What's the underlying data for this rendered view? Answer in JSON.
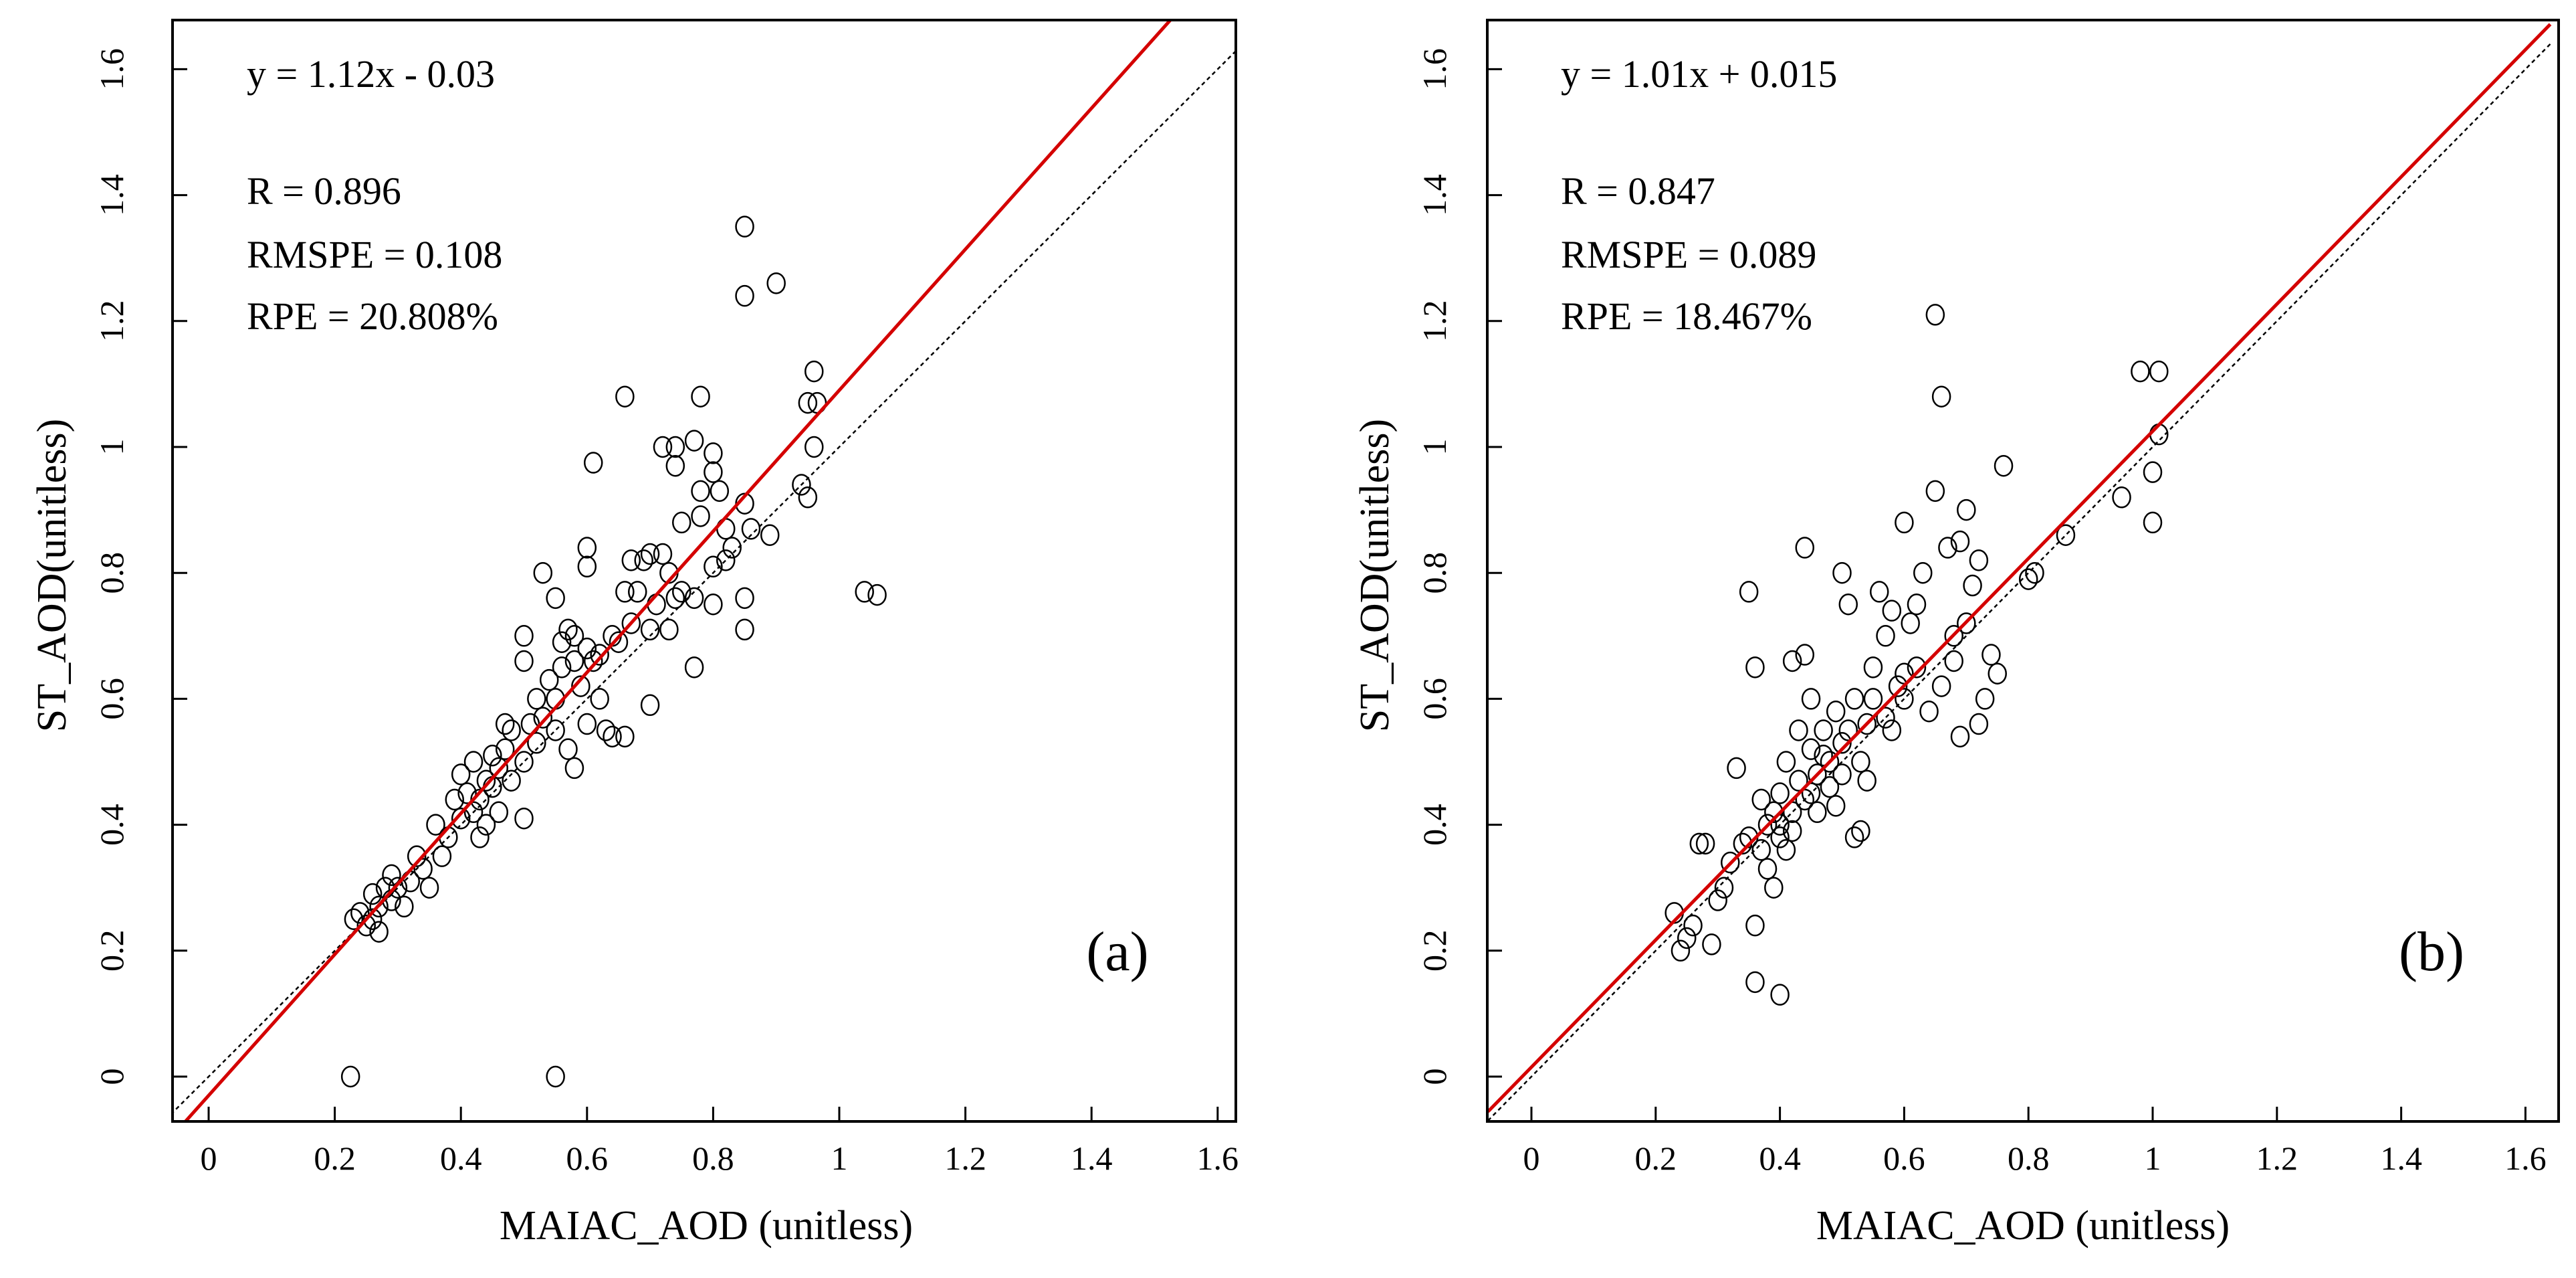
{
  "chart_data": [
    {
      "type": "scatter",
      "panel_label": "(a)",
      "xlabel": "MAIAC_AOD (unitless)",
      "ylabel": "ST_AOD(unitless)",
      "xlim": [
        -0.06,
        1.64
      ],
      "ylim": [
        -0.07,
        1.65
      ],
      "xticks": [
        0,
        0.2,
        0.4,
        0.6,
        0.8,
        1,
        1.2,
        1.4,
        1.6
      ],
      "yticks": [
        0,
        0.2,
        0.4,
        0.6,
        0.8,
        1,
        1.2,
        1.4,
        1.6
      ],
      "annotations": [
        "y = 1.12x - 0.03",
        "R = 0.896",
        "RMSPE = 0.108",
        "RPE = 20.808%"
      ],
      "fit": {
        "slope": 1.12,
        "intercept": -0.03,
        "color": "#d40000"
      },
      "reference_line": {
        "slope": 1,
        "intercept": 0,
        "style": "dotted"
      },
      "points": [
        [
          0.225,
          0.0
        ],
        [
          0.55,
          0.0
        ],
        [
          0.85,
          1.35
        ],
        [
          0.9,
          1.26
        ],
        [
          0.85,
          1.24
        ],
        [
          0.96,
          1.12
        ],
        [
          0.95,
          1.07
        ],
        [
          0.965,
          1.07
        ],
        [
          0.96,
          1.0
        ],
        [
          0.95,
          0.92
        ],
        [
          0.94,
          0.94
        ],
        [
          1.04,
          0.77
        ],
        [
          1.06,
          0.765
        ],
        [
          0.66,
          1.08
        ],
        [
          0.78,
          1.08
        ],
        [
          0.61,
          0.975
        ],
        [
          0.72,
          1.0
        ],
        [
          0.74,
          1.0
        ],
        [
          0.77,
          1.01
        ],
        [
          0.74,
          0.97
        ],
        [
          0.8,
          0.99
        ],
        [
          0.85,
          0.91
        ],
        [
          0.86,
          0.87
        ],
        [
          0.89,
          0.86
        ],
        [
          0.85,
          0.76
        ],
        [
          0.85,
          0.71
        ],
        [
          0.82,
          0.87
        ],
        [
          0.8,
          0.96
        ],
        [
          0.81,
          0.93
        ],
        [
          0.78,
          0.93
        ],
        [
          0.78,
          0.89
        ],
        [
          0.75,
          0.88
        ],
        [
          0.83,
          0.84
        ],
        [
          0.82,
          0.82
        ],
        [
          0.8,
          0.81
        ],
        [
          0.8,
          0.75
        ],
        [
          0.77,
          0.76
        ],
        [
          0.77,
          0.65
        ],
        [
          0.75,
          0.77
        ],
        [
          0.74,
          0.76
        ],
        [
          0.73,
          0.8
        ],
        [
          0.72,
          0.83
        ],
        [
          0.7,
          0.83
        ],
        [
          0.69,
          0.82
        ],
        [
          0.67,
          0.82
        ],
        [
          0.68,
          0.77
        ],
        [
          0.7,
          0.71
        ],
        [
          0.7,
          0.59
        ],
        [
          0.66,
          0.77
        ],
        [
          0.64,
          0.7
        ],
        [
          0.66,
          0.54
        ],
        [
          0.6,
          0.84
        ],
        [
          0.6,
          0.81
        ],
        [
          0.53,
          0.8
        ],
        [
          0.55,
          0.76
        ],
        [
          0.57,
          0.71
        ],
        [
          0.58,
          0.7
        ],
        [
          0.6,
          0.68
        ],
        [
          0.62,
          0.67
        ],
        [
          0.63,
          0.55
        ],
        [
          0.64,
          0.54
        ],
        [
          0.59,
          0.62
        ],
        [
          0.56,
          0.65
        ],
        [
          0.55,
          0.6
        ],
        [
          0.53,
          0.57
        ],
        [
          0.51,
          0.56
        ],
        [
          0.5,
          0.7
        ],
        [
          0.5,
          0.66
        ],
        [
          0.52,
          0.53
        ],
        [
          0.5,
          0.5
        ],
        [
          0.48,
          0.55
        ],
        [
          0.47,
          0.52
        ],
        [
          0.46,
          0.49
        ],
        [
          0.45,
          0.46
        ],
        [
          0.44,
          0.47
        ],
        [
          0.43,
          0.44
        ],
        [
          0.42,
          0.42
        ],
        [
          0.41,
          0.45
        ],
        [
          0.4,
          0.48
        ],
        [
          0.5,
          0.41
        ],
        [
          0.46,
          0.42
        ],
        [
          0.44,
          0.4
        ],
        [
          0.38,
          0.38
        ],
        [
          0.37,
          0.35
        ],
        [
          0.36,
          0.4
        ],
        [
          0.35,
          0.3
        ],
        [
          0.34,
          0.33
        ],
        [
          0.33,
          0.35
        ],
        [
          0.32,
          0.31
        ],
        [
          0.3,
          0.3
        ],
        [
          0.29,
          0.28
        ],
        [
          0.28,
          0.3
        ],
        [
          0.27,
          0.27
        ],
        [
          0.26,
          0.25
        ],
        [
          0.25,
          0.24
        ],
        [
          0.24,
          0.26
        ],
        [
          0.23,
          0.25
        ],
        [
          0.26,
          0.29
        ],
        [
          0.29,
          0.32
        ],
        [
          0.57,
          0.52
        ],
        [
          0.58,
          0.49
        ],
        [
          0.55,
          0.55
        ],
        [
          0.48,
          0.47
        ],
        [
          0.42,
          0.5
        ],
        [
          0.39,
          0.44
        ],
        [
          0.54,
          0.63
        ],
        [
          0.52,
          0.6
        ],
        [
          0.61,
          0.66
        ],
        [
          0.65,
          0.69
        ],
        [
          0.67,
          0.72
        ],
        [
          0.71,
          0.75
        ],
        [
          0.73,
          0.71
        ],
        [
          0.56,
          0.69
        ],
        [
          0.58,
          0.66
        ],
        [
          0.6,
          0.56
        ],
        [
          0.62,
          0.6
        ],
        [
          0.45,
          0.51
        ],
        [
          0.47,
          0.56
        ],
        [
          0.4,
          0.41
        ],
        [
          0.43,
          0.38
        ],
        [
          0.31,
          0.27
        ],
        [
          0.27,
          0.23
        ]
      ]
    },
    {
      "type": "scatter",
      "panel_label": "(b)",
      "xlabel": "MAIAC_AOD (unitless)",
      "ylabel": "ST_AOD(unitless)",
      "xlim": [
        -0.07,
        1.64
      ],
      "ylim": [
        -0.07,
        1.65
      ],
      "xticks": [
        0,
        0.2,
        0.4,
        0.6,
        0.8,
        1,
        1.2,
        1.4,
        1.6
      ],
      "yticks": [
        0,
        0.2,
        0.4,
        0.6,
        0.8,
        1,
        1.2,
        1.4,
        1.6
      ],
      "annotations": [
        "y = 1.01x + 0.015",
        "R = 0.847",
        "RMSPE = 0.089",
        "RPE = 18.467%"
      ],
      "fit": {
        "slope": 1.01,
        "intercept": 0.015,
        "color": "#d40000"
      },
      "reference_line": {
        "slope": 1,
        "intercept": 0,
        "style": "dotted"
      },
      "points": [
        [
          0.23,
          0.26
        ],
        [
          0.24,
          0.2
        ],
        [
          0.25,
          0.22
        ],
        [
          0.26,
          0.24
        ],
        [
          0.27,
          0.37
        ],
        [
          0.28,
          0.37
        ],
        [
          0.29,
          0.21
        ],
        [
          0.3,
          0.28
        ],
        [
          0.31,
          0.3
        ],
        [
          0.32,
          0.34
        ],
        [
          0.33,
          0.49
        ],
        [
          0.34,
          0.37
        ],
        [
          0.35,
          0.77
        ],
        [
          0.36,
          0.65
        ],
        [
          0.36,
          0.15
        ],
        [
          0.36,
          0.24
        ],
        [
          0.4,
          0.13
        ],
        [
          0.37,
          0.44
        ],
        [
          0.38,
          0.4
        ],
        [
          0.39,
          0.42
        ],
        [
          0.4,
          0.38
        ],
        [
          0.4,
          0.45
        ],
        [
          0.41,
          0.5
        ],
        [
          0.42,
          0.42
        ],
        [
          0.43,
          0.47
        ],
        [
          0.42,
          0.66
        ],
        [
          0.44,
          0.84
        ],
        [
          0.44,
          0.67
        ],
        [
          0.45,
          0.52
        ],
        [
          0.46,
          0.48
        ],
        [
          0.47,
          0.55
        ],
        [
          0.48,
          0.5
        ],
        [
          0.49,
          0.58
        ],
        [
          0.5,
          0.53
        ],
        [
          0.5,
          0.8
        ],
        [
          0.51,
          0.75
        ],
        [
          0.52,
          0.6
        ],
        [
          0.52,
          0.38
        ],
        [
          0.53,
          0.39
        ],
        [
          0.54,
          0.56
        ],
        [
          0.55,
          0.65
        ],
        [
          0.56,
          0.77
        ],
        [
          0.57,
          0.7
        ],
        [
          0.58,
          0.74
        ],
        [
          0.59,
          0.62
        ],
        [
          0.6,
          0.64
        ],
        [
          0.6,
          0.88
        ],
        [
          0.61,
          0.72
        ],
        [
          0.62,
          0.75
        ],
        [
          0.63,
          0.8
        ],
        [
          0.64,
          0.58
        ],
        [
          0.65,
          0.93
        ],
        [
          0.65,
          1.21
        ],
        [
          0.66,
          1.08
        ],
        [
          0.67,
          0.84
        ],
        [
          0.68,
          0.7
        ],
        [
          0.69,
          0.54
        ],
        [
          0.69,
          0.85
        ],
        [
          0.7,
          0.9
        ],
        [
          0.71,
          0.78
        ],
        [
          0.72,
          0.82
        ],
        [
          0.73,
          0.6
        ],
        [
          0.74,
          0.67
        ],
        [
          0.75,
          0.64
        ],
        [
          0.76,
          0.97
        ],
        [
          0.8,
          0.79
        ],
        [
          0.81,
          0.8
        ],
        [
          0.86,
          0.86
        ],
        [
          0.95,
          0.92
        ],
        [
          0.98,
          1.12
        ],
        [
          1.01,
          1.12
        ],
        [
          1.0,
          0.96
        ],
        [
          1.0,
          0.88
        ],
        [
          1.01,
          1.02
        ],
        [
          0.38,
          0.33
        ],
        [
          0.41,
          0.36
        ],
        [
          0.44,
          0.44
        ],
        [
          0.46,
          0.42
        ],
        [
          0.47,
          0.51
        ],
        [
          0.48,
          0.46
        ],
        [
          0.5,
          0.48
        ],
        [
          0.51,
          0.55
        ],
        [
          0.53,
          0.5
        ],
        [
          0.55,
          0.6
        ],
        [
          0.57,
          0.57
        ],
        [
          0.58,
          0.55
        ],
        [
          0.6,
          0.6
        ],
        [
          0.62,
          0.65
        ],
        [
          0.66,
          0.62
        ],
        [
          0.68,
          0.66
        ],
        [
          0.7,
          0.72
        ],
        [
          0.72,
          0.56
        ],
        [
          0.39,
          0.3
        ],
        [
          0.43,
          0.55
        ],
        [
          0.45,
          0.6
        ],
        [
          0.49,
          0.43
        ],
        [
          0.54,
          0.47
        ],
        [
          0.35,
          0.38
        ],
        [
          0.37,
          0.36
        ],
        [
          0.4,
          0.4
        ],
        [
          0.42,
          0.39
        ],
        [
          0.45,
          0.45
        ]
      ]
    }
  ]
}
